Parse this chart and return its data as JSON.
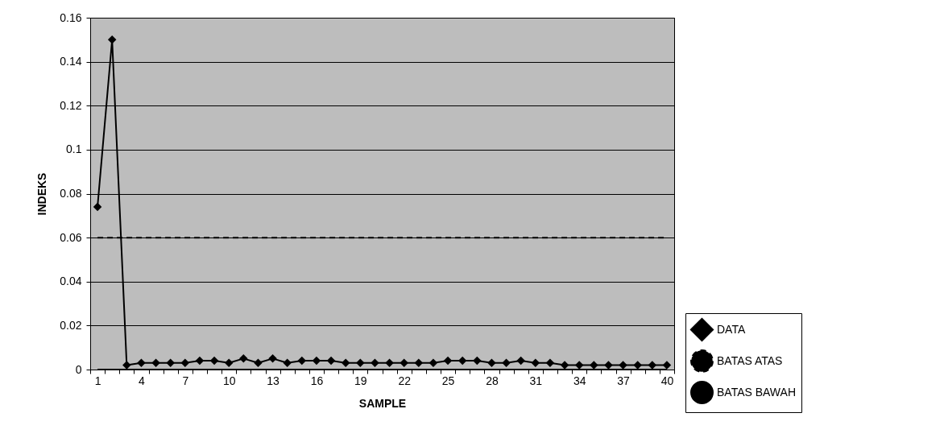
{
  "chart_data": {
    "type": "line",
    "xlabel": "SAMPLE",
    "ylabel": "INDEKS",
    "categories": [
      "1",
      null,
      null,
      "4",
      null,
      null,
      "7",
      null,
      null,
      "10",
      null,
      null,
      "13",
      null,
      null,
      "16",
      null,
      null,
      "19",
      null,
      null,
      "22",
      null,
      null,
      "25",
      null,
      null,
      "28",
      null,
      null,
      "31",
      null,
      null,
      "34",
      null,
      null,
      "37",
      null,
      null,
      "40"
    ],
    "series": [
      {
        "name": "DATA",
        "color": "#000000",
        "marker": "diamond",
        "line_style": "solid",
        "values": [
          0.074,
          0.15,
          0.002,
          0.003,
          0.003,
          0.003,
          0.003,
          0.004,
          0.004,
          0.003,
          0.005,
          0.003,
          0.005,
          0.003,
          0.004,
          0.004,
          0.004,
          0.003,
          0.003,
          0.003,
          0.003,
          0.003,
          0.003,
          0.003,
          0.004,
          0.004,
          0.004,
          0.003,
          0.003,
          0.004,
          0.003,
          0.003,
          0.002,
          0.002,
          0.002,
          0.002,
          0.002,
          0.002,
          0.002,
          0.002
        ]
      },
      {
        "name": "BATAS ATAS",
        "color": "#000000",
        "marker": "none",
        "line_style": "dashed",
        "values": [
          0.06,
          0.06,
          0.06,
          0.06,
          0.06,
          0.06,
          0.06,
          0.06,
          0.06,
          0.06,
          0.06,
          0.06,
          0.06,
          0.06,
          0.06,
          0.06,
          0.06,
          0.06,
          0.06,
          0.06,
          0.06,
          0.06,
          0.06,
          0.06,
          0.06,
          0.06,
          0.06,
          0.06,
          0.06,
          0.06,
          0.06,
          0.06,
          0.06,
          0.06,
          0.06,
          0.06,
          0.06,
          0.06,
          0.06,
          0.06
        ]
      },
      {
        "name": "BATAS BAWAH",
        "color": "#000000",
        "marker": "none",
        "line_style": "solid",
        "values": [
          0,
          0,
          0,
          0,
          0,
          0,
          0,
          0,
          0,
          0,
          0,
          0,
          0,
          0,
          0,
          0,
          0,
          0,
          0,
          0,
          0,
          0,
          0,
          0,
          0,
          0,
          0,
          0,
          0,
          0,
          0,
          0,
          0,
          0,
          0,
          0,
          0,
          0,
          0,
          0
        ]
      }
    ],
    "ylim": [
      0,
      0.16
    ],
    "yticks": [
      {
        "value": 0,
        "label": "0"
      },
      0.02,
      0.04,
      0.06,
      0.08,
      {
        "value": 0.1,
        "label": "0.1"
      },
      0.12,
      0.14,
      0.16
    ],
    "grid": "y",
    "legend": "right"
  }
}
